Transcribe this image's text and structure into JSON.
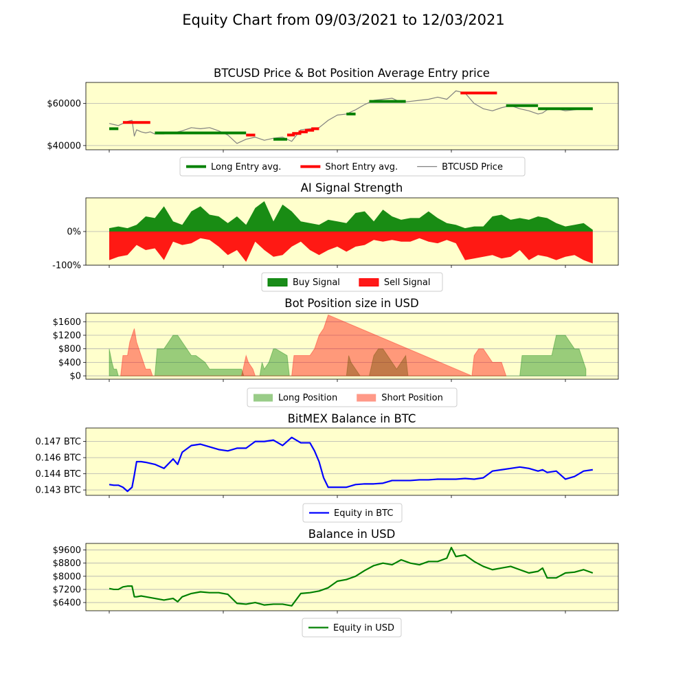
{
  "figure": {
    "title": "Equity Chart from 09/03/2021 to 12/03/2021",
    "facecolor": "#ffffcc",
    "x_range": [
      0,
      100
    ],
    "x_ticks": [
      0,
      25,
      50,
      75,
      100
    ],
    "x_tick_labels_shown": false
  },
  "chart_data": [
    {
      "type": "line",
      "title": "BTCUSD Price & Bot Position Average Entry price",
      "ylim": [
        38000,
        70000
      ],
      "y_ticks": [
        40000,
        60000
      ],
      "y_tick_labels": [
        "$40000",
        "$60000"
      ],
      "grid": "y",
      "legend": {
        "placement": "below",
        "entries": [
          {
            "label": "Long Entry avg.",
            "color": "#008000",
            "kind": "line-thick"
          },
          {
            "label": "Short Entry avg.",
            "color": "#ff0000",
            "kind": "line-thick"
          },
          {
            "label": "BTCUSD Price",
            "color": "#808080",
            "kind": "line"
          }
        ]
      },
      "series": [
        {
          "name": "BTCUSD Price",
          "color": "#808080",
          "x": [
            0,
            1,
            2,
            3,
            4,
            5,
            5.5,
            6,
            7,
            8,
            9,
            10,
            12,
            14,
            16,
            18,
            20,
            22,
            24,
            26,
            28,
            30,
            32,
            34,
            36,
            38,
            40,
            42,
            44,
            46,
            48,
            50,
            52,
            54,
            56,
            58,
            60,
            62,
            64,
            66,
            68,
            70,
            72,
            74,
            75,
            76,
            78,
            80,
            82,
            84,
            86,
            88,
            90,
            92,
            94,
            95,
            96,
            98,
            100,
            102,
            104,
            106
          ],
          "y": [
            50500,
            50000,
            49500,
            50500,
            51500,
            52000,
            44500,
            47500,
            46500,
            46000,
            46500,
            45500,
            45500,
            46000,
            47000,
            48500,
            48000,
            48500,
            47000,
            45000,
            41000,
            43000,
            44000,
            42500,
            43500,
            44000,
            42000,
            47500,
            48000,
            48500,
            52000,
            54500,
            55000,
            57000,
            59500,
            61500,
            62000,
            62500,
            60500,
            61000,
            61500,
            62000,
            63000,
            62000,
            64000,
            66000,
            65000,
            60000,
            57500,
            56500,
            58000,
            59000,
            57500,
            56500,
            55000,
            55500,
            57000,
            57500,
            56500,
            57000,
            57500,
            57000
          ]
        },
        {
          "name": "Long Entry avg.",
          "color": "#008000",
          "segments": [
            {
              "x": [
                0,
                2
              ],
              "y": 48000
            },
            {
              "x": [
                10,
                30
              ],
              "y": 46000
            },
            {
              "x": [
                36,
                39
              ],
              "y": 43000
            },
            {
              "x": [
                52,
                54
              ],
              "y": 55000
            },
            {
              "x": [
                57,
                65
              ],
              "y": 61000
            },
            {
              "x": [
                87,
                94
              ],
              "y": 59000
            },
            {
              "x": [
                94,
                106
              ],
              "y": 57500
            }
          ]
        },
        {
          "name": "Short Entry avg.",
          "color": "#ff0000",
          "segments": [
            {
              "x": [
                3,
                9
              ],
              "y": 51000
            },
            {
              "x": [
                30,
                32
              ],
              "y": 45000
            },
            {
              "x": [
                39,
                46
              ],
              "y": [
                45000,
                48000
              ]
            },
            {
              "x": [
                77,
                85
              ],
              "y": 65000
            }
          ]
        }
      ]
    },
    {
      "type": "area",
      "title": "AI Signal Strength",
      "ylim": [
        -100,
        100
      ],
      "y_ticks": [
        0,
        -100
      ],
      "y_tick_labels": [
        "0%",
        "-100%"
      ],
      "grid": "y",
      "legend": {
        "placement": "below",
        "entries": [
          {
            "label": "Buy Signal",
            "color": "#008000",
            "kind": "patch"
          },
          {
            "label": "Sell Signal",
            "color": "#ff0000",
            "kind": "patch"
          }
        ]
      },
      "series": [
        {
          "name": "Buy Signal",
          "color": "#008000",
          "x": [
            0,
            2,
            4,
            6,
            8,
            10,
            12,
            14,
            16,
            18,
            20,
            22,
            24,
            26,
            28,
            30,
            32,
            34,
            36,
            38,
            40,
            42,
            44,
            46,
            48,
            50,
            52,
            54,
            56,
            58,
            60,
            62,
            64,
            66,
            68,
            70,
            72,
            74,
            76,
            78,
            80,
            82,
            84,
            86,
            88,
            90,
            92,
            94,
            96,
            98,
            100,
            102,
            104,
            106
          ],
          "y": [
            10,
            15,
            10,
            20,
            45,
            40,
            75,
            30,
            20,
            60,
            75,
            50,
            45,
            25,
            45,
            20,
            70,
            90,
            30,
            80,
            60,
            30,
            25,
            20,
            35,
            30,
            25,
            55,
            60,
            30,
            65,
            45,
            35,
            40,
            40,
            60,
            40,
            25,
            20,
            10,
            15,
            15,
            45,
            50,
            35,
            40,
            35,
            45,
            40,
            25,
            15,
            20,
            25,
            5
          ]
        },
        {
          "name": "Sell Signal",
          "color": "#ff0000",
          "x": [
            0,
            2,
            4,
            6,
            8,
            10,
            12,
            14,
            16,
            18,
            20,
            22,
            24,
            26,
            28,
            30,
            32,
            34,
            36,
            38,
            40,
            42,
            44,
            46,
            48,
            50,
            52,
            54,
            56,
            58,
            60,
            62,
            64,
            66,
            68,
            70,
            72,
            74,
            76,
            78,
            80,
            82,
            84,
            86,
            88,
            90,
            92,
            94,
            96,
            98,
            100,
            102,
            104,
            106
          ],
          "y": [
            -85,
            -75,
            -70,
            -40,
            -55,
            -50,
            -85,
            -30,
            -40,
            -35,
            -20,
            -25,
            -45,
            -70,
            -55,
            -90,
            -30,
            -55,
            -75,
            -70,
            -45,
            -30,
            -55,
            -70,
            -55,
            -45,
            -60,
            -45,
            -40,
            -25,
            -30,
            -25,
            -30,
            -30,
            -20,
            -30,
            -35,
            -25,
            -35,
            -85,
            -80,
            -75,
            -70,
            -80,
            -75,
            -55,
            -85,
            -70,
            -75,
            -85,
            -75,
            -70,
            -85,
            -95
          ]
        }
      ]
    },
    {
      "type": "area",
      "title": "Bot Position size in USD",
      "ylim": [
        -100,
        1850
      ],
      "y_ticks": [
        0,
        400,
        800,
        1200,
        1600
      ],
      "y_tick_labels": [
        "$0",
        "$400",
        "$800",
        "$1200",
        "$1600"
      ],
      "grid": "y",
      "legend": {
        "placement": "below",
        "entries": [
          {
            "label": "Long Position",
            "color": "#99cc88",
            "kind": "patch"
          },
          {
            "label": "Short Position",
            "color": "#ff9988",
            "kind": "patch"
          }
        ]
      },
      "series": [
        {
          "name": "Long Position",
          "color": "#008000",
          "x": [
            0,
            0.3,
            0.6,
            1,
            1.6,
            2,
            10,
            10.5,
            12,
            13,
            14,
            15,
            16,
            17,
            18,
            19,
            21,
            22,
            23,
            29,
            29.5,
            30,
            33,
            33.5,
            34,
            35,
            35.5,
            36,
            36.5,
            39,
            39.5,
            40,
            52,
            52.5,
            53,
            54,
            55,
            56,
            57,
            58,
            59,
            60,
            61,
            62,
            63,
            64,
            65,
            65.5,
            90,
            90.5,
            97,
            98,
            100,
            101,
            102,
            103,
            103.5,
            104,
            104.5
          ],
          "y": [
            800,
            600,
            400,
            200,
            200,
            0,
            0,
            800,
            800,
            1000,
            1200,
            1200,
            1000,
            800,
            600,
            600,
            400,
            200,
            200,
            200,
            0,
            0,
            0,
            400,
            200,
            400,
            600,
            800,
            800,
            600,
            0,
            0,
            0,
            600,
            400,
            200,
            0,
            0,
            0,
            600,
            800,
            800,
            600,
            400,
            200,
            400,
            600,
            0,
            0,
            600,
            600,
            1200,
            1200,
            1000,
            800,
            800,
            600,
            400,
            200
          ]
        },
        {
          "name": "Short Position",
          "color": "#ff0000",
          "x": [
            2.5,
            3,
            4,
            4.5,
            5,
            5.5,
            6,
            6.5,
            7,
            7.5,
            8,
            8.5,
            9,
            9.5,
            29,
            30,
            30.5,
            31.5,
            32,
            40,
            40.5,
            44,
            45,
            46,
            47,
            47.5,
            48,
            79.5,
            80,
            81,
            82,
            83,
            84,
            85,
            86,
            86.5,
            87
          ],
          "y": [
            0,
            600,
            600,
            1000,
            1200,
            1400,
            1000,
            800,
            600,
            400,
            200,
            200,
            200,
            0,
            0,
            600,
            400,
            200,
            0,
            0,
            600,
            600,
            800,
            1200,
            1400,
            1600,
            1800,
            0,
            600,
            800,
            800,
            600,
            400,
            400,
            400,
            200,
            0
          ]
        }
      ]
    },
    {
      "type": "line",
      "title": "BitMEX Balance in BTC",
      "ylim": [
        0.1427,
        0.1477
      ],
      "y_ticks": [
        0.1431,
        0.1443,
        0.1455,
        0.1467
      ],
      "y_tick_labels": [
        "0.143 BTC",
        "0.144 BTC",
        "0.146 BTC",
        "0.147 BTC"
      ],
      "grid": "y",
      "legend": {
        "placement": "below",
        "entries": [
          {
            "label": "Equity in BTC",
            "color": "#0000ff",
            "kind": "line"
          }
        ]
      },
      "series": [
        {
          "name": "Equity in BTC",
          "color": "#0000ff",
          "x": [
            0,
            1,
            2,
            3,
            4,
            5,
            5.5,
            6,
            7,
            8,
            10,
            12,
            14,
            15,
            16,
            18,
            20,
            22,
            24,
            26,
            28,
            30,
            32,
            34,
            36,
            38,
            40,
            42,
            44,
            45,
            46,
            47,
            48,
            50,
            52,
            54,
            56,
            58,
            60,
            62,
            64,
            66,
            68,
            70,
            72,
            74,
            76,
            78,
            80,
            82,
            84,
            86,
            88,
            90,
            92,
            94,
            95,
            96,
            98,
            100,
            102,
            104,
            106
          ],
          "y": [
            0.1435,
            0.14345,
            0.14345,
            0.1433,
            0.143,
            0.1433,
            0.1442,
            0.1452,
            0.1452,
            0.14515,
            0.145,
            0.1447,
            0.1454,
            0.145,
            0.1459,
            0.1464,
            0.1465,
            0.1463,
            0.1461,
            0.146,
            0.1462,
            0.1462,
            0.1467,
            0.1467,
            0.1468,
            0.1464,
            0.147,
            0.1466,
            0.1466,
            0.146,
            0.1452,
            0.144,
            0.1433,
            0.1433,
            0.1433,
            0.1435,
            0.14355,
            0.14355,
            0.1436,
            0.1438,
            0.1438,
            0.1438,
            0.14385,
            0.14385,
            0.1439,
            0.1439,
            0.1439,
            0.14395,
            0.1439,
            0.144,
            0.1445,
            0.1446,
            0.1447,
            0.1448,
            0.1447,
            0.1445,
            0.1446,
            0.1444,
            0.1445,
            0.1439,
            0.1441,
            0.1445,
            0.1446
          ]
        }
      ]
    },
    {
      "type": "line",
      "title": "Balance in USD",
      "ylim": [
        5900,
        10000
      ],
      "y_ticks": [
        6400,
        7200,
        8000,
        8800,
        9600
      ],
      "y_tick_labels": [
        "$6400",
        "$7200",
        "$8000",
        "$8800",
        "$9600"
      ],
      "grid": "y",
      "legend": {
        "placement": "below",
        "entries": [
          {
            "label": "Equity in USD",
            "color": "#008000",
            "kind": "line"
          }
        ]
      },
      "series": [
        {
          "name": "Equity in USD",
          "color": "#008000",
          "x": [
            0,
            1,
            2,
            3,
            4,
            5,
            5.5,
            6,
            7,
            8,
            10,
            12,
            14,
            15,
            16,
            18,
            20,
            22,
            24,
            26,
            28,
            30,
            32,
            34,
            36,
            38,
            40,
            42,
            44,
            46,
            48,
            50,
            52,
            54,
            56,
            58,
            60,
            62,
            64,
            66,
            68,
            70,
            72,
            74,
            75,
            76,
            78,
            80,
            82,
            84,
            86,
            88,
            90,
            92,
            94,
            95,
            96,
            98,
            100,
            102,
            104,
            106
          ],
          "y": [
            7250,
            7200,
            7200,
            7350,
            7400,
            7400,
            6750,
            6750,
            6800,
            6750,
            6650,
            6550,
            6650,
            6450,
            6750,
            6950,
            7050,
            7000,
            7000,
            6900,
            6350,
            6300,
            6400,
            6250,
            6300,
            6300,
            6200,
            6950,
            7000,
            7100,
            7300,
            7700,
            7800,
            8000,
            8350,
            8650,
            8800,
            8700,
            9000,
            8800,
            8700,
            8900,
            8900,
            9100,
            9750,
            9200,
            9300,
            8900,
            8600,
            8400,
            8500,
            8600,
            8400,
            8200,
            8300,
            8500,
            7900,
            7900,
            8200,
            8250,
            8400,
            8200
          ]
        }
      ]
    }
  ]
}
